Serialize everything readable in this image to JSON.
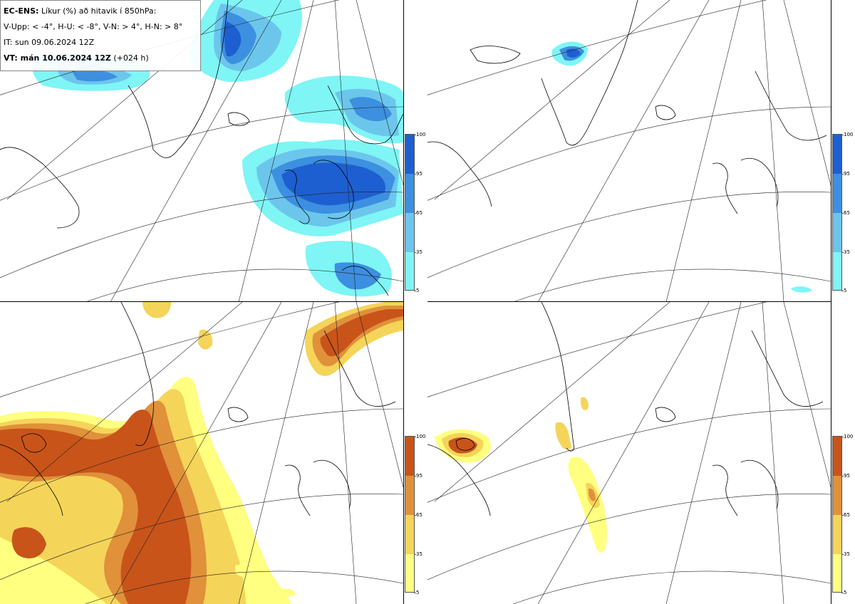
{
  "legend": {
    "line1_bold": "EC-ENS:",
    "line1_text": " Líkur (%) að hitavik í 850hPa:",
    "line2": "V-Upp: < -4°, H-U: < -8°, V-N: > 4°, H-N: > 8°",
    "line3": "IT: sun 09.06.2024 12Z",
    "line4_bold": "VT: mán 10.06.2024 12Z",
    "line4_text": " (+024 h)"
  },
  "colorbar": {
    "ticks": [
      "100",
      "95",
      "65",
      "35",
      "5"
    ],
    "blue_colors": [
      "#1d5fd0",
      "#3d8fe0",
      "#6cc6ec",
      "#7ff5f5"
    ],
    "orange_colors": [
      "#c8541a",
      "#e0913a",
      "#f5d45a",
      "#ffff80"
    ]
  },
  "panels": [
    {
      "id": "top-left",
      "label": "V-Upp"
    },
    {
      "id": "top-right",
      "label": "H-U"
    },
    {
      "id": "bottom-left",
      "label": "V-N"
    },
    {
      "id": "bottom-right",
      "label": "H-N"
    }
  ]
}
